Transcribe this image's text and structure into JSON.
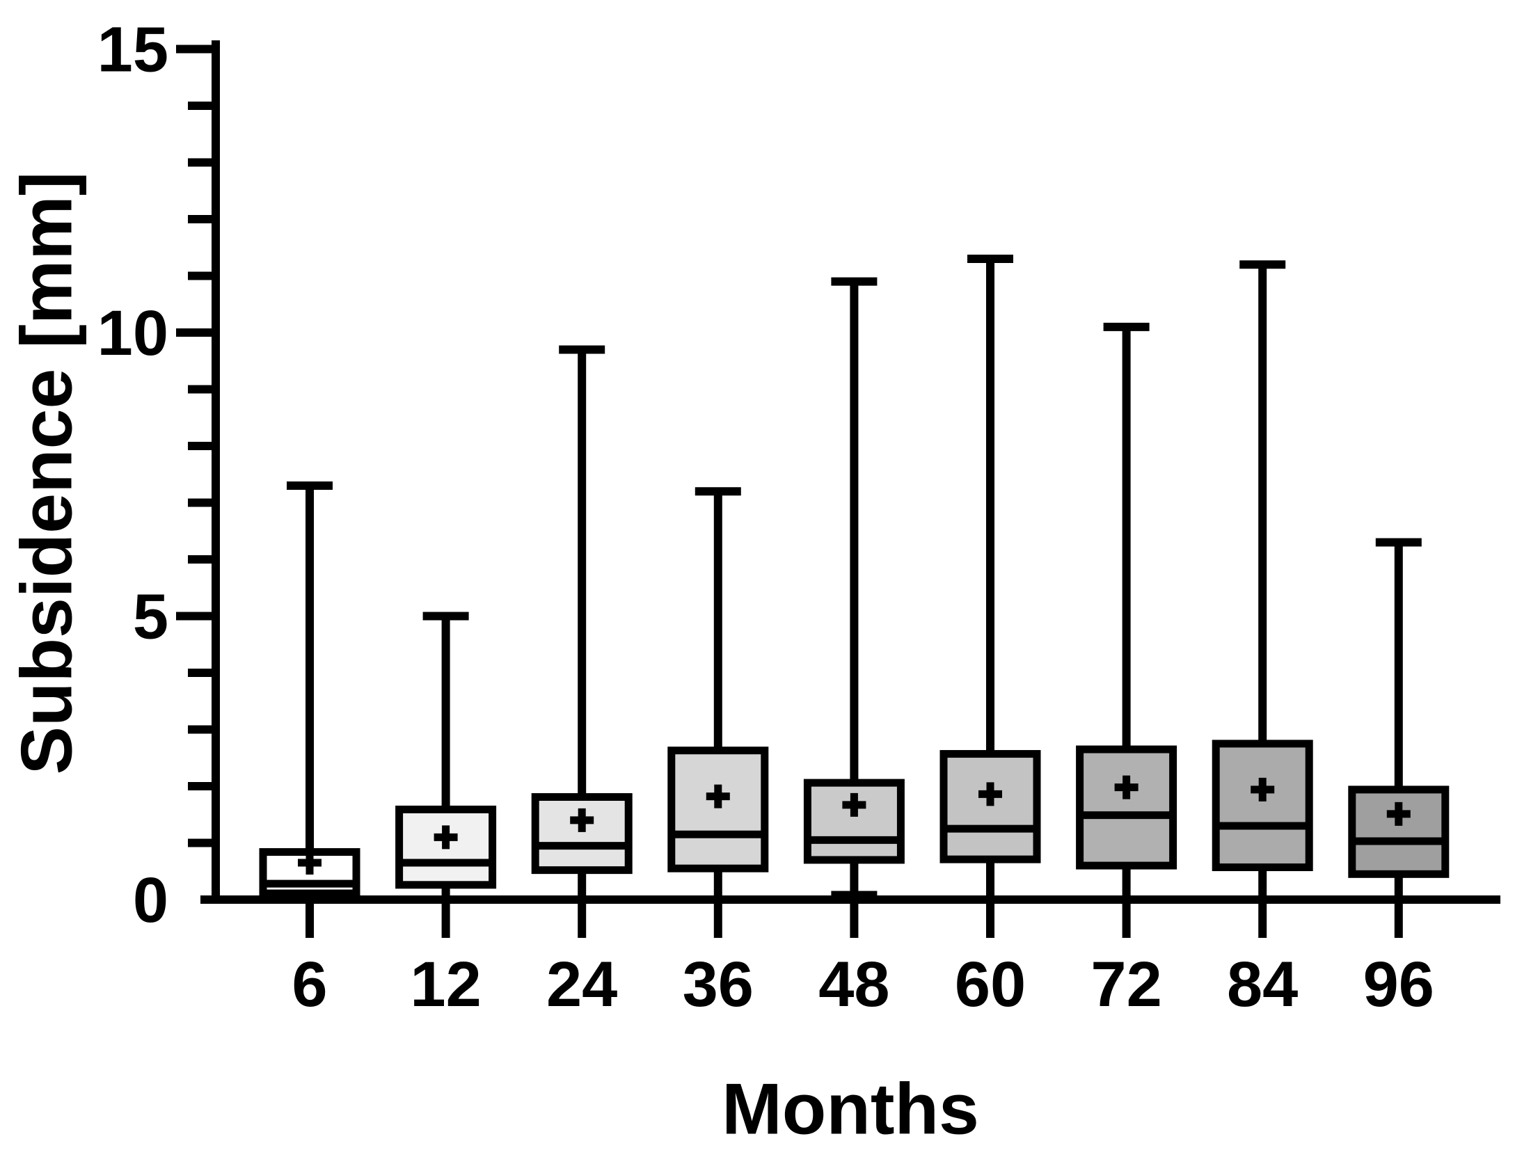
{
  "chart_data": {
    "type": "boxplot",
    "title": "",
    "ylabel": "Subsidence [mm]",
    "xlabel": "Months",
    "ylim": [
      0,
      15
    ],
    "ytick_values": [
      0,
      5,
      10,
      15
    ],
    "ytick_labels": [
      "0",
      "5",
      "10",
      "15"
    ],
    "minor_tick_step": 1,
    "grid": false,
    "legend": "none",
    "mean_marker": "plus",
    "box_outline_color": "#000000",
    "categories": [
      "6",
      "12",
      "24",
      "36",
      "48",
      "60",
      "72",
      "84",
      "96"
    ],
    "series": [
      {
        "month": "6",
        "min": 0.0,
        "q1": 0.11,
        "median": 0.28,
        "q3": 0.84,
        "max": 7.3,
        "mean": 0.65,
        "fill": "#ffffff"
      },
      {
        "month": "12",
        "min": 0.0,
        "q1": 0.26,
        "median": 0.65,
        "q3": 1.59,
        "max": 5.0,
        "mean": 1.1,
        "fill": "#f1f1f1"
      },
      {
        "month": "24",
        "min": 0.0,
        "q1": 0.52,
        "median": 0.95,
        "q3": 1.81,
        "max": 9.7,
        "mean": 1.4,
        "fill": "#e4e4e4"
      },
      {
        "month": "36",
        "min": 0.0,
        "q1": 0.55,
        "median": 1.15,
        "q3": 2.63,
        "max": 7.2,
        "mean": 1.82,
        "fill": "#d6d6d6"
      },
      {
        "month": "48",
        "min": 0.08,
        "q1": 0.7,
        "median": 1.05,
        "q3": 2.06,
        "max": 10.9,
        "mean": 1.67,
        "fill": "#cacaca"
      },
      {
        "month": "60",
        "min": 0.0,
        "q1": 0.71,
        "median": 1.25,
        "q3": 2.57,
        "max": 11.3,
        "mean": 1.86,
        "fill": "#c3c3c3"
      },
      {
        "month": "72",
        "min": 0.0,
        "q1": 0.6,
        "median": 1.49,
        "q3": 2.65,
        "max": 10.1,
        "mean": 1.98,
        "fill": "#b1b1b1"
      },
      {
        "month": "84",
        "min": 0.0,
        "q1": 0.57,
        "median": 1.3,
        "q3": 2.75,
        "max": 11.2,
        "mean": 1.94,
        "fill": "#ababab"
      },
      {
        "month": "96",
        "min": 0.0,
        "q1": 0.45,
        "median": 1.03,
        "q3": 1.94,
        "max": 6.3,
        "mean": 1.51,
        "fill": "#9f9f9f"
      }
    ]
  }
}
